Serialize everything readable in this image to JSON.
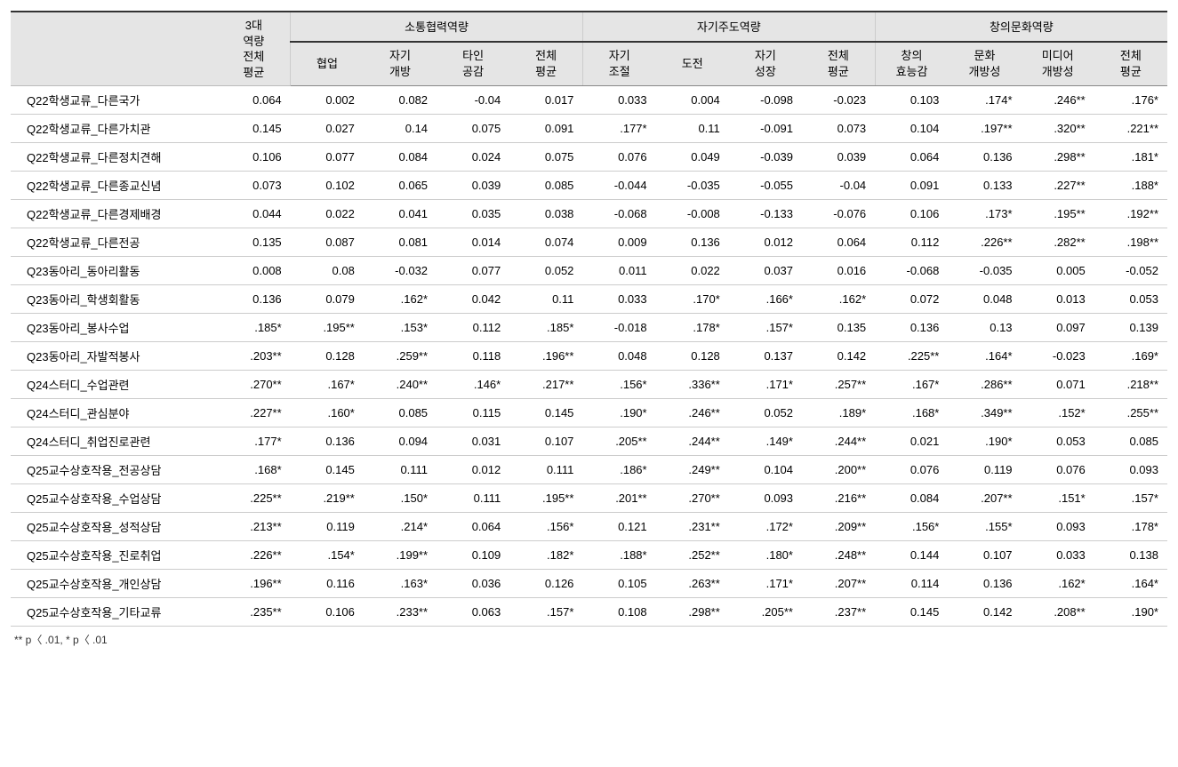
{
  "header": {
    "row_label": "",
    "col_overall": "3대\n역량\n전체\n평균",
    "groups": [
      {
        "title": "소통협력역량",
        "subs": [
          "협업",
          "자기\n개방",
          "타인\n공감",
          "전체\n평균"
        ]
      },
      {
        "title": "자기주도역량",
        "subs": [
          "자기\n조절",
          "도전",
          "자기\n성장",
          "전체\n평균"
        ]
      },
      {
        "title": "창의문화역량",
        "subs": [
          "창의\n효능감",
          "문화\n개방성",
          "미디어\n개방성",
          "전체\n평균"
        ]
      }
    ]
  },
  "rows": [
    {
      "label": "Q22학생교류_다른국가",
      "v": [
        "0.064",
        "0.002",
        "0.082",
        "-0.04",
        "0.017",
        "0.033",
        "0.004",
        "-0.098",
        "-0.023",
        "0.103",
        ".174*",
        ".246**",
        ".176*"
      ]
    },
    {
      "label": "Q22학생교류_다른가치관",
      "v": [
        "0.145",
        "0.027",
        "0.14",
        "0.075",
        "0.091",
        ".177*",
        "0.11",
        "-0.091",
        "0.073",
        "0.104",
        ".197**",
        ".320**",
        ".221**"
      ]
    },
    {
      "label": "Q22학생교류_다른정치견해",
      "v": [
        "0.106",
        "0.077",
        "0.084",
        "0.024",
        "0.075",
        "0.076",
        "0.049",
        "-0.039",
        "0.039",
        "0.064",
        "0.136",
        ".298**",
        ".181*"
      ]
    },
    {
      "label": "Q22학생교류_다른종교신념",
      "v": [
        "0.073",
        "0.102",
        "0.065",
        "0.039",
        "0.085",
        "-0.044",
        "-0.035",
        "-0.055",
        "-0.04",
        "0.091",
        "0.133",
        ".227**",
        ".188*"
      ]
    },
    {
      "label": "Q22학생교류_다른경제배경",
      "v": [
        "0.044",
        "0.022",
        "0.041",
        "0.035",
        "0.038",
        "-0.068",
        "-0.008",
        "-0.133",
        "-0.076",
        "0.106",
        ".173*",
        ".195**",
        ".192**"
      ]
    },
    {
      "label": "Q22학생교류_다른전공",
      "v": [
        "0.135",
        "0.087",
        "0.081",
        "0.014",
        "0.074",
        "0.009",
        "0.136",
        "0.012",
        "0.064",
        "0.112",
        ".226**",
        ".282**",
        ".198**"
      ]
    },
    {
      "label": "Q23동아리_동아리활동",
      "v": [
        "0.008",
        "0.08",
        "-0.032",
        "0.077",
        "0.052",
        "0.011",
        "0.022",
        "0.037",
        "0.016",
        "-0.068",
        "-0.035",
        "0.005",
        "-0.052"
      ]
    },
    {
      "label": "Q23동아리_학생회활동",
      "v": [
        "0.136",
        "0.079",
        ".162*",
        "0.042",
        "0.11",
        "0.033",
        ".170*",
        ".166*",
        ".162*",
        "0.072",
        "0.048",
        "0.013",
        "0.053"
      ]
    },
    {
      "label": "Q23동아리_봉사수업",
      "v": [
        ".185*",
        ".195**",
        ".153*",
        "0.112",
        ".185*",
        "-0.018",
        ".178*",
        ".157*",
        "0.135",
        "0.136",
        "0.13",
        "0.097",
        "0.139"
      ]
    },
    {
      "label": "Q23동아리_자발적봉사",
      "v": [
        ".203**",
        "0.128",
        ".259**",
        "0.118",
        ".196**",
        "0.048",
        "0.128",
        "0.137",
        "0.142",
        ".225**",
        ".164*",
        "-0.023",
        ".169*"
      ]
    },
    {
      "label": "Q24스터디_수업관련",
      "v": [
        ".270**",
        ".167*",
        ".240**",
        ".146*",
        ".217**",
        ".156*",
        ".336**",
        ".171*",
        ".257**",
        ".167*",
        ".286**",
        "0.071",
        ".218**"
      ]
    },
    {
      "label": "Q24스터디_관심분야",
      "v": [
        ".227**",
        ".160*",
        "0.085",
        "0.115",
        "0.145",
        ".190*",
        ".246**",
        "0.052",
        ".189*",
        ".168*",
        ".349**",
        ".152*",
        ".255**"
      ]
    },
    {
      "label": "Q24스터디_취업진로관련",
      "v": [
        ".177*",
        "0.136",
        "0.094",
        "0.031",
        "0.107",
        ".205**",
        ".244**",
        ".149*",
        ".244**",
        "0.021",
        ".190*",
        "0.053",
        "0.085"
      ]
    },
    {
      "label": "Q25교수상호작용_전공상담",
      "v": [
        ".168*",
        "0.145",
        "0.111",
        "0.012",
        "0.111",
        ".186*",
        ".249**",
        "0.104",
        ".200**",
        "0.076",
        "0.119",
        "0.076",
        "0.093"
      ]
    },
    {
      "label": "Q25교수상호작용_수업상담",
      "v": [
        ".225**",
        ".219**",
        ".150*",
        "0.111",
        ".195**",
        ".201**",
        ".270**",
        "0.093",
        ".216**",
        "0.084",
        ".207**",
        ".151*",
        ".157*"
      ]
    },
    {
      "label": "Q25교수상호작용_성적상담",
      "v": [
        ".213**",
        "0.119",
        ".214*",
        "0.064",
        ".156*",
        "0.121",
        ".231**",
        ".172*",
        ".209**",
        ".156*",
        ".155*",
        "0.093",
        ".178*"
      ]
    },
    {
      "label": "Q25교수상호작용_진로취업",
      "v": [
        ".226**",
        ".154*",
        ".199**",
        "0.109",
        ".182*",
        ".188*",
        ".252**",
        ".180*",
        ".248**",
        "0.144",
        "0.107",
        "0.033",
        "0.138"
      ]
    },
    {
      "label": "Q25교수상호작용_개인상담",
      "v": [
        ".196**",
        "0.116",
        ".163*",
        "0.036",
        "0.126",
        "0.105",
        ".263**",
        ".171*",
        ".207**",
        "0.114",
        "0.136",
        ".162*",
        ".164*"
      ]
    },
    {
      "label": "Q25교수상호작용_기타교류",
      "v": [
        ".235**",
        "0.106",
        ".233**",
        "0.063",
        ".157*",
        "0.108",
        ".298**",
        ".205**",
        ".237**",
        "0.145",
        "0.142",
        ".208**",
        ".190*"
      ]
    }
  ],
  "footnote": "** p〈 .01,   * p〈 .01",
  "style": {
    "font_size_pt": 13,
    "header_bg": "#e5e5e5",
    "border_color": "#cccccc",
    "top_rule_color": "#333333",
    "text_color": "#000000",
    "row_label_align": "left",
    "num_align": "right"
  }
}
